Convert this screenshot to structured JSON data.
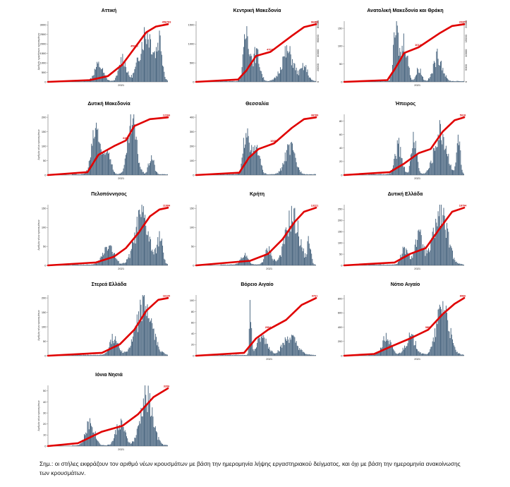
{
  "colors": {
    "bars": "#4a6680",
    "cumulative_line": "#e00000",
    "end_label": "#d10000"
  },
  "note": "Σημ.: οι στήλες εκφράζουν τον αριθμό νέων κρουσμάτων με βάση την ημερομηνία λήψης εργαστηριακού δείγματος, και όχι με βάση την ημερομηνία ανακοίνωσης των κρουσμάτων.",
  "chart_data": [
    {
      "type": "bar",
      "title": "Αττική",
      "ylabel": "Αριθμός ημερήσιων κρουσμάτων",
      "x_tick": "2021",
      "left_ticks": [
        "0",
        "500",
        "1000",
        "1500",
        "2000",
        "2500",
        "3000"
      ],
      "ylim": [
        0,
        3200
      ],
      "right_ticks": [],
      "end_label": "456783",
      "mid_label": "45000",
      "peaks": [
        {
          "c": 0.42,
          "w": 0.05,
          "h": 0.32
        },
        {
          "c": 0.62,
          "w": 0.04,
          "h": 0.46
        },
        {
          "c": 0.82,
          "w": 0.08,
          "h": 0.97
        },
        {
          "c": 0.93,
          "w": 0.03,
          "h": 0.72
        }
      ],
      "cum": [
        [
          0,
          0
        ],
        [
          0.35,
          0.03
        ],
        [
          0.5,
          0.1
        ],
        [
          0.62,
          0.3
        ],
        [
          0.72,
          0.58
        ],
        [
          0.82,
          0.86
        ],
        [
          0.9,
          0.96
        ],
        [
          1,
          1
        ]
      ]
    },
    {
      "type": "bar",
      "title": "Κεντρική Μακεδονία",
      "ylabel": "",
      "x_tick": "",
      "left_ticks": [
        "0",
        "500",
        "1000",
        "1500"
      ],
      "ylim": [
        0,
        1600
      ],
      "right_ticks": [
        "0",
        "20000",
        "40000",
        "60000",
        "80000"
      ],
      "end_label": "96409",
      "mid_label": "47038",
      "peaks": [
        {
          "c": 0.42,
          "w": 0.035,
          "h": 1.0
        },
        {
          "c": 0.5,
          "w": 0.04,
          "h": 0.55
        },
        {
          "c": 0.76,
          "w": 0.07,
          "h": 0.58
        },
        {
          "c": 0.9,
          "w": 0.04,
          "h": 0.28
        }
      ],
      "cum": [
        [
          0,
          0
        ],
        [
          0.35,
          0.04
        ],
        [
          0.42,
          0.2
        ],
        [
          0.5,
          0.45
        ],
        [
          0.62,
          0.52
        ],
        [
          0.8,
          0.8
        ],
        [
          0.9,
          0.95
        ],
        [
          1,
          1
        ]
      ]
    },
    {
      "type": "bar",
      "title": "Ανατολική Μακεδονία και Θράκη",
      "ylabel": "",
      "x_tick": "2021",
      "left_ticks": [
        "0",
        "50",
        "100",
        "150"
      ],
      "ylim": [
        0,
        170
      ],
      "right_ticks": [
        "0",
        "5000",
        "10000",
        "15000",
        "20000"
      ],
      "end_label": "20377",
      "mid_label": "10126",
      "peaks": [
        {
          "c": 0.43,
          "w": 0.03,
          "h": 1.0
        },
        {
          "c": 0.5,
          "w": 0.035,
          "h": 0.8
        },
        {
          "c": 0.62,
          "w": 0.03,
          "h": 0.25
        },
        {
          "c": 0.78,
          "w": 0.05,
          "h": 0.5
        }
      ],
      "cum": [
        [
          0,
          0
        ],
        [
          0.36,
          0.03
        ],
        [
          0.43,
          0.25
        ],
        [
          0.5,
          0.5
        ],
        [
          0.62,
          0.6
        ],
        [
          0.8,
          0.85
        ],
        [
          0.9,
          0.97
        ],
        [
          1,
          1
        ]
      ]
    },
    {
      "type": "bar",
      "title": "Δυτική Μακεδονία",
      "ylabel": "Αριθμός νέων κρουσμάτων",
      "x_tick": "2021",
      "left_ticks": [
        "0",
        "50",
        "100",
        "150",
        "200"
      ],
      "ylim": [
        0,
        210
      ],
      "right_ticks": [],
      "end_label": "12266",
      "mid_label": "6352",
      "peaks": [
        {
          "c": 0.4,
          "w": 0.05,
          "h": 0.9
        },
        {
          "c": 0.5,
          "w": 0.035,
          "h": 0.45
        },
        {
          "c": 0.7,
          "w": 0.05,
          "h": 1.0
        },
        {
          "c": 0.86,
          "w": 0.03,
          "h": 0.35
        }
      ],
      "cum": [
        [
          0,
          0
        ],
        [
          0.33,
          0.05
        ],
        [
          0.42,
          0.35
        ],
        [
          0.55,
          0.5
        ],
        [
          0.65,
          0.6
        ],
        [
          0.72,
          0.85
        ],
        [
          0.85,
          0.97
        ],
        [
          1,
          1
        ]
      ]
    },
    {
      "type": "bar",
      "title": "Θεσσαλία",
      "ylabel": "",
      "x_tick": "",
      "left_ticks": [
        "0",
        "100",
        "200",
        "300",
        "400"
      ],
      "ylim": [
        0,
        420
      ],
      "right_ticks": [],
      "end_label": "38789",
      "mid_label": "16653",
      "peaks": [
        {
          "c": 0.42,
          "w": 0.035,
          "h": 1.0
        },
        {
          "c": 0.5,
          "w": 0.04,
          "h": 0.5
        },
        {
          "c": 0.78,
          "w": 0.06,
          "h": 0.52
        }
      ],
      "cum": [
        [
          0,
          0
        ],
        [
          0.36,
          0.04
        ],
        [
          0.44,
          0.3
        ],
        [
          0.52,
          0.45
        ],
        [
          0.65,
          0.55
        ],
        [
          0.8,
          0.82
        ],
        [
          0.9,
          0.97
        ],
        [
          1,
          1
        ]
      ]
    },
    {
      "type": "bar",
      "title": "Ήπειρος",
      "ylabel": "",
      "x_tick": "2021",
      "left_ticks": [
        "0",
        "20",
        "40",
        "60",
        "80"
      ],
      "ylim": [
        0,
        90
      ],
      "right_ticks": [],
      "end_label": "5918",
      "mid_label": "",
      "peaks": [
        {
          "c": 0.45,
          "w": 0.04,
          "h": 0.55
        },
        {
          "c": 0.58,
          "w": 0.03,
          "h": 0.75
        },
        {
          "c": 0.8,
          "w": 0.07,
          "h": 0.85
        },
        {
          "c": 0.95,
          "w": 0.02,
          "h": 0.75
        }
      ],
      "cum": [
        [
          0,
          0
        ],
        [
          0.38,
          0.05
        ],
        [
          0.5,
          0.2
        ],
        [
          0.62,
          0.38
        ],
        [
          0.72,
          0.45
        ],
        [
          0.82,
          0.75
        ],
        [
          0.92,
          0.95
        ],
        [
          1,
          1
        ]
      ]
    },
    {
      "type": "bar",
      "title": "Πελοπόννησος",
      "ylabel": "Αριθμός νέων κρουσμάτων",
      "x_tick": "2021",
      "left_ticks": [
        "0",
        "50",
        "100",
        "150"
      ],
      "ylim": [
        0,
        160
      ],
      "right_ticks": [],
      "end_label": "11084",
      "mid_label": "",
      "peaks": [
        {
          "c": 0.5,
          "w": 0.06,
          "h": 0.4
        },
        {
          "c": 0.78,
          "w": 0.08,
          "h": 0.95
        },
        {
          "c": 0.93,
          "w": 0.03,
          "h": 0.55
        }
      ],
      "cum": [
        [
          0,
          0
        ],
        [
          0.4,
          0.05
        ],
        [
          0.55,
          0.15
        ],
        [
          0.65,
          0.3
        ],
        [
          0.75,
          0.55
        ],
        [
          0.85,
          0.85
        ],
        [
          0.93,
          0.97
        ],
        [
          1,
          1
        ]
      ]
    },
    {
      "type": "bar",
      "title": "Κρήτη",
      "ylabel": "",
      "x_tick": "2021",
      "left_ticks": [
        "0",
        "50",
        "100",
        "150"
      ],
      "ylim": [
        0,
        160
      ],
      "right_ticks": [],
      "end_label": "13221",
      "mid_label": "",
      "peaks": [
        {
          "c": 0.4,
          "w": 0.04,
          "h": 0.22
        },
        {
          "c": 0.6,
          "w": 0.04,
          "h": 0.3
        },
        {
          "c": 0.8,
          "w": 0.08,
          "h": 0.95
        },
        {
          "c": 0.94,
          "w": 0.02,
          "h": 0.45
        }
      ],
      "cum": [
        [
          0,
          0
        ],
        [
          0.45,
          0.08
        ],
        [
          0.6,
          0.2
        ],
        [
          0.72,
          0.45
        ],
        [
          0.82,
          0.75
        ],
        [
          0.9,
          0.93
        ],
        [
          1,
          1
        ]
      ]
    },
    {
      "type": "bar",
      "title": "Δυτική Ελλάδα",
      "ylabel": "",
      "x_tick": "2021",
      "left_ticks": [
        "0",
        "50",
        "100",
        "150",
        "200",
        "250"
      ],
      "ylim": [
        0,
        270
      ],
      "right_ticks": [],
      "end_label": "18794",
      "mid_label": "",
      "peaks": [
        {
          "c": 0.5,
          "w": 0.04,
          "h": 0.3
        },
        {
          "c": 0.62,
          "w": 0.05,
          "h": 0.55
        },
        {
          "c": 0.8,
          "w": 0.08,
          "h": 1.0
        }
      ],
      "cum": [
        [
          0,
          0
        ],
        [
          0.42,
          0.05
        ],
        [
          0.55,
          0.2
        ],
        [
          0.68,
          0.3
        ],
        [
          0.8,
          0.65
        ],
        [
          0.9,
          0.93
        ],
        [
          1,
          1
        ]
      ]
    },
    {
      "type": "bar",
      "title": "Στερεά Ελλάδα",
      "ylabel": "Αριθμός νέων κρουσμάτων",
      "x_tick": "",
      "left_ticks": [
        "0",
        "50",
        "100",
        "150",
        "200"
      ],
      "ylim": [
        0,
        210
      ],
      "right_ticks": [],
      "end_label": "16120",
      "mid_label": "",
      "peaks": [
        {
          "c": 0.55,
          "w": 0.05,
          "h": 0.35
        },
        {
          "c": 0.8,
          "w": 0.09,
          "h": 0.98
        }
      ],
      "cum": [
        [
          0,
          0
        ],
        [
          0.45,
          0.05
        ],
        [
          0.6,
          0.2
        ],
        [
          0.72,
          0.45
        ],
        [
          0.82,
          0.78
        ],
        [
          0.92,
          0.97
        ],
        [
          1,
          1
        ]
      ]
    },
    {
      "type": "bar",
      "title": "Βόρειο Αιγαίο",
      "ylabel": "",
      "x_tick": "2021",
      "left_ticks": [
        "0",
        "20",
        "40",
        "60",
        "80",
        "100"
      ],
      "ylim": [
        0,
        110
      ],
      "right_ticks": [],
      "end_label": "4761",
      "mid_label": "2004",
      "peaks": [
        {
          "c": 0.45,
          "w": 0.012,
          "h": 0.95
        },
        {
          "c": 0.55,
          "w": 0.06,
          "h": 0.35
        },
        {
          "c": 0.78,
          "w": 0.08,
          "h": 0.35
        }
      ],
      "cum": [
        [
          0,
          0
        ],
        [
          0.4,
          0.05
        ],
        [
          0.5,
          0.3
        ],
        [
          0.6,
          0.45
        ],
        [
          0.75,
          0.62
        ],
        [
          0.88,
          0.88
        ],
        [
          1,
          1
        ]
      ]
    },
    {
      "type": "bar",
      "title": "Νότιο Αιγαίο",
      "ylabel": "",
      "x_tick": "2021",
      "left_ticks": [
        "0",
        "200",
        "400",
        "600",
        "800"
      ],
      "ylim": [
        0,
        850
      ],
      "right_ticks": [],
      "end_label": "8966",
      "mid_label": "3866",
      "peaks": [
        {
          "c": 0.35,
          "w": 0.05,
          "h": 0.35
        },
        {
          "c": 0.55,
          "w": 0.06,
          "h": 0.35
        },
        {
          "c": 0.82,
          "w": 0.07,
          "h": 1.0
        }
      ],
      "cum": [
        [
          0,
          0
        ],
        [
          0.25,
          0.03
        ],
        [
          0.38,
          0.15
        ],
        [
          0.55,
          0.3
        ],
        [
          0.7,
          0.45
        ],
        [
          0.82,
          0.72
        ],
        [
          0.92,
          0.9
        ],
        [
          1,
          1
        ]
      ]
    },
    {
      "type": "bar",
      "title": "Ιόνια Νησιά",
      "ylabel": "Αριθμός νέων κρουσμάτων",
      "x_tick": "2021",
      "left_ticks": [
        "0",
        "10",
        "20",
        "30",
        "40",
        "50"
      ],
      "ylim": [
        0,
        55
      ],
      "right_ticks": [],
      "end_label": "3206",
      "mid_label": "",
      "peaks": [
        {
          "c": 0.35,
          "w": 0.05,
          "h": 0.45
        },
        {
          "c": 0.6,
          "w": 0.05,
          "h": 0.45
        },
        {
          "c": 0.82,
          "w": 0.07,
          "h": 0.95
        }
      ],
      "cum": [
        [
          0,
          0
        ],
        [
          0.25,
          0.05
        ],
        [
          0.45,
          0.25
        ],
        [
          0.62,
          0.35
        ],
        [
          0.75,
          0.55
        ],
        [
          0.88,
          0.85
        ],
        [
          1,
          1
        ]
      ]
    }
  ]
}
